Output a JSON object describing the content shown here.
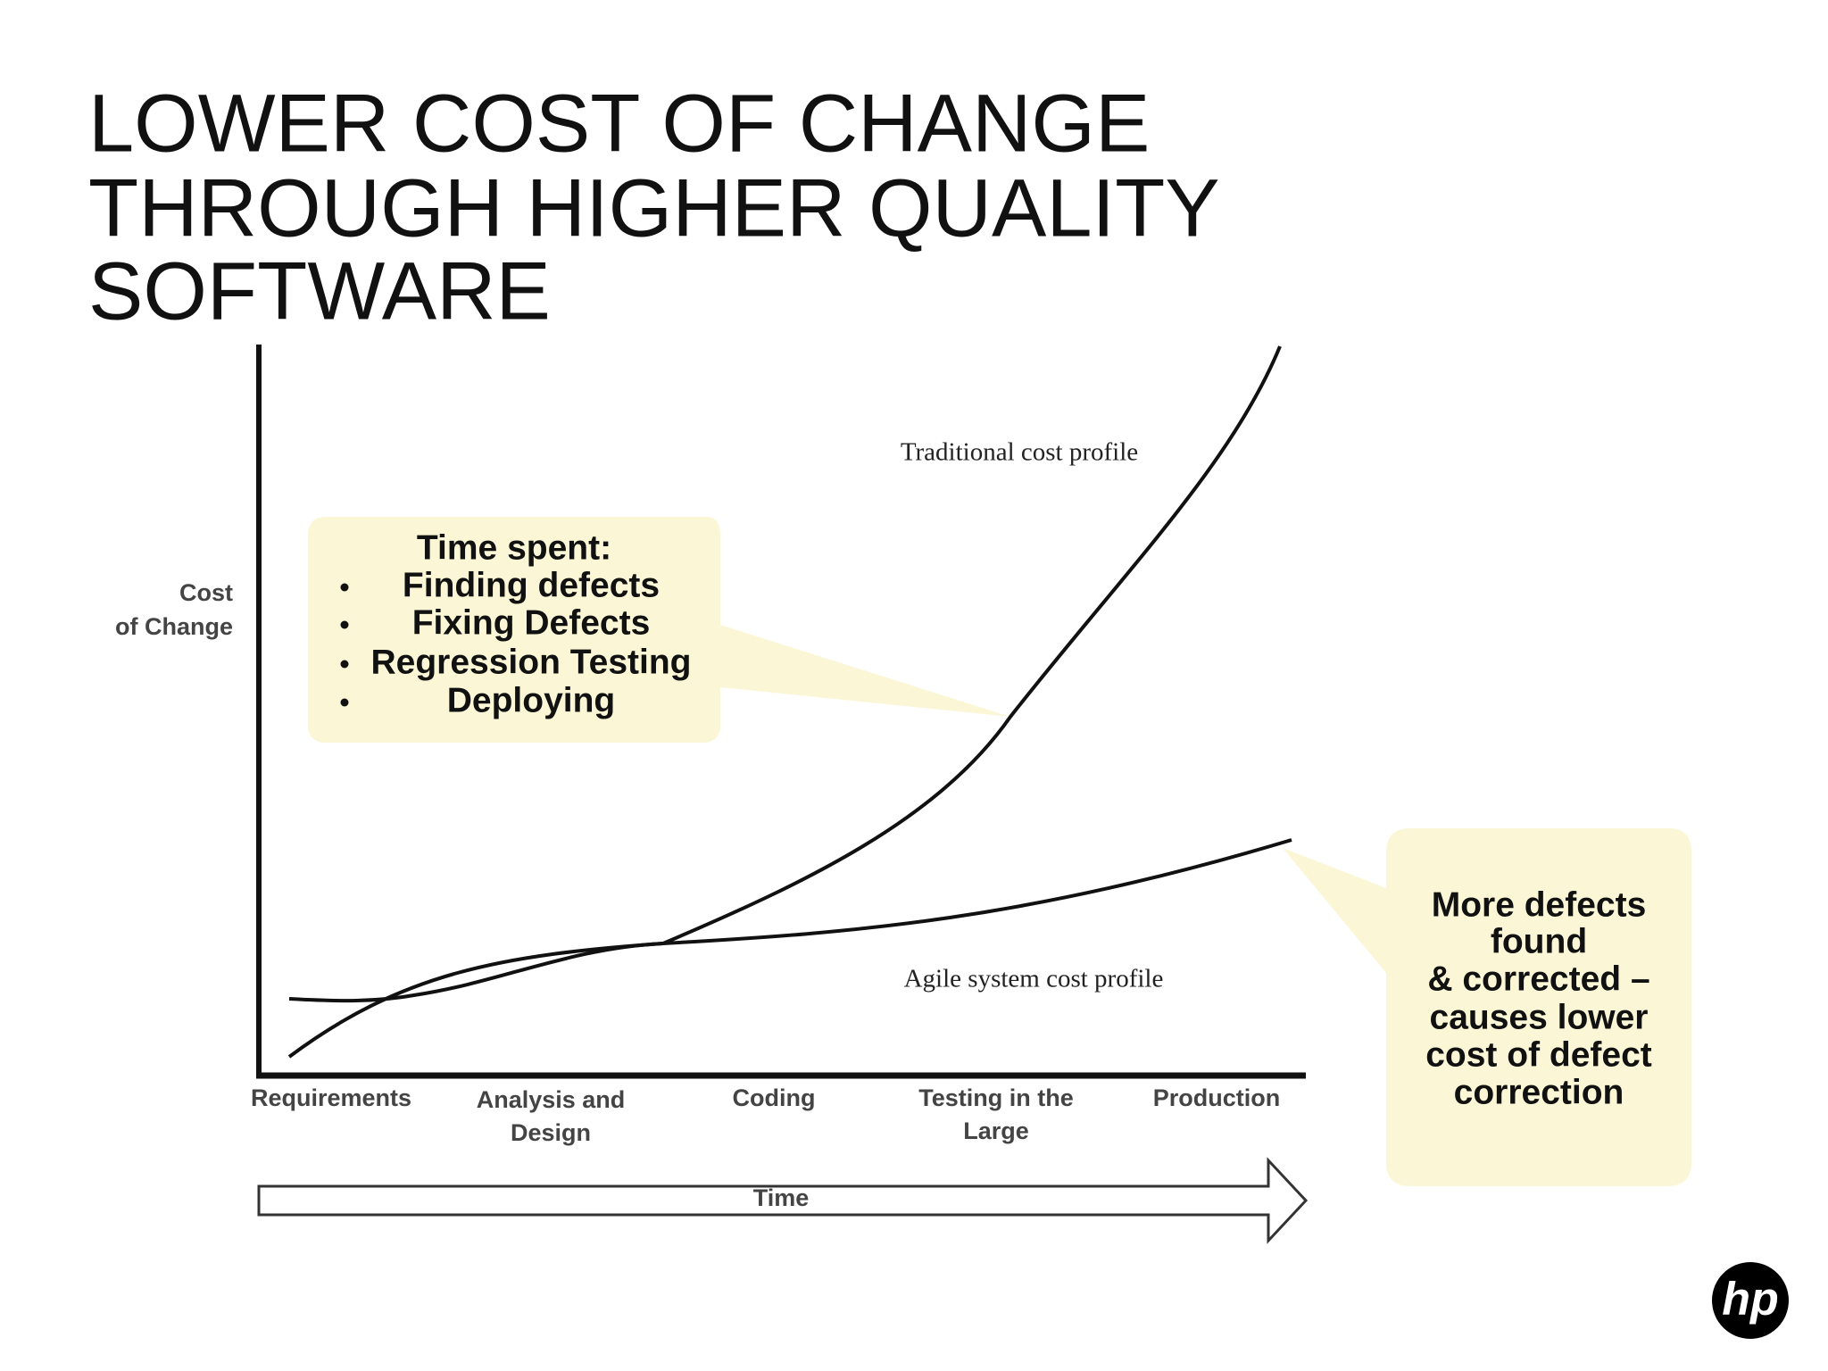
{
  "title": [
    "LOWER COST OF CHANGE",
    "THROUGH HIGHER QUALITY",
    "SOFTWARE"
  ],
  "diagram": {
    "y_axis_label": [
      "Cost",
      "of Change"
    ],
    "x_categories": [
      [
        "Requirements"
      ],
      [
        "Analysis and",
        "Design"
      ],
      [
        "Coding"
      ],
      [
        "Testing in the",
        "Large"
      ],
      [
        "Production"
      ]
    ],
    "curves": [
      "Traditional cost profile",
      "Agile system cost profile"
    ],
    "arrow_label": "Time"
  },
  "callouts": [
    {
      "heading": "Time spent:",
      "items": [
        "Finding defects",
        "Fixing Defects",
        "Regression Testing",
        "Deploying"
      ]
    },
    {
      "lines": [
        "More defects",
        "found",
        "& corrected –",
        "causes lower",
        "cost of defect",
        "correction"
      ]
    }
  ],
  "logo": "hp"
}
